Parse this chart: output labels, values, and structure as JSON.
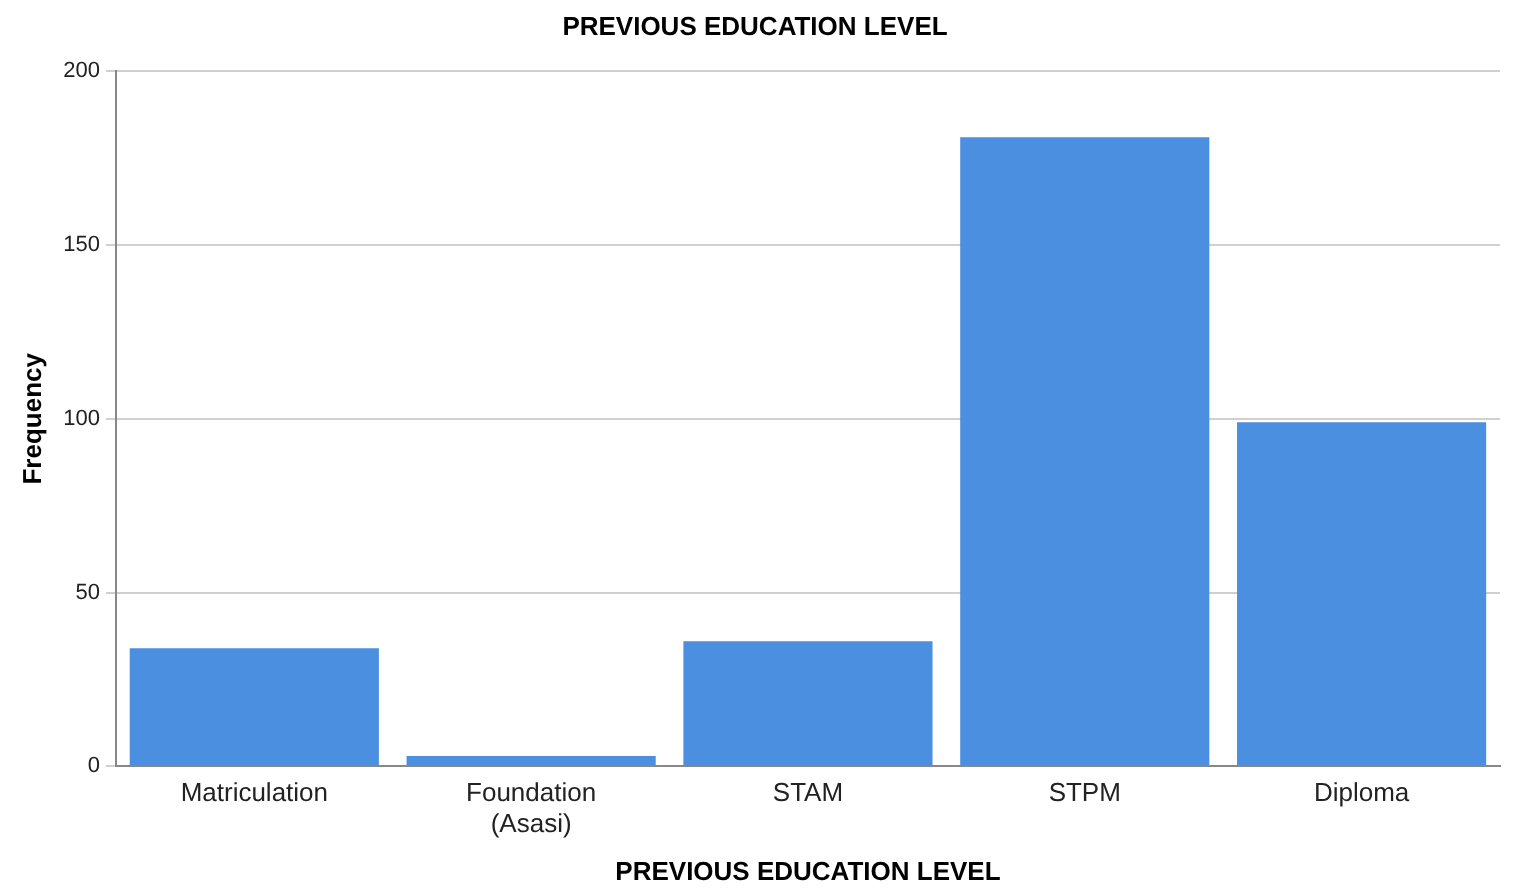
{
  "chart_data": {
    "type": "bar",
    "title": "PREVIOUS EDUCATION LEVEL",
    "xlabel": "PREVIOUS EDUCATION LEVEL",
    "ylabel": "Frequency",
    "categories": [
      "Matriculation",
      "Foundation\n(Asasi)",
      "STAM",
      "STPM",
      "Diploma"
    ],
    "values": [
      34,
      3,
      36,
      181,
      99
    ],
    "color": "#4a8fe0",
    "ylim": [
      0,
      200
    ],
    "yticks": [
      0,
      50,
      100,
      150,
      200
    ],
    "grid": "y"
  }
}
